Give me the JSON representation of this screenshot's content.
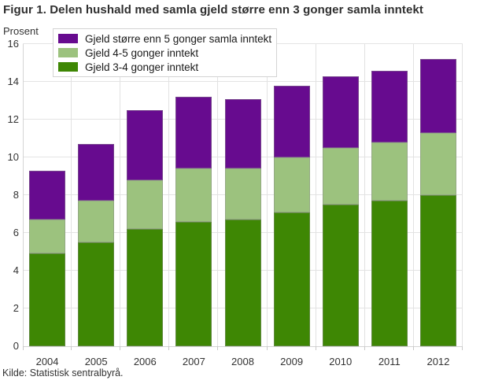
{
  "title": "Figur 1. Delen hushald med samla gjeld større enn 3 gonger samla inntekt",
  "source": "Kilde: Statistisk sentralbyrå.",
  "chart_data": {
    "type": "bar",
    "stacked": true,
    "title": "Figur 1. Delen hushald med samla gjeld større enn 3 gonger samla inntekt",
    "ylabel": "Prosent",
    "ylim": [
      0,
      16
    ],
    "yticks": [
      0,
      2,
      4,
      6,
      8,
      10,
      12,
      14,
      16
    ],
    "grid": true,
    "legend_position": "top-left-inside",
    "categories": [
      "2004",
      "2005",
      "2006",
      "2007",
      "2008",
      "2009",
      "2010",
      "2011",
      "2012"
    ],
    "series": [
      {
        "name": "Gjeld 3-4 gonger inntekt",
        "color": "#3e8704",
        "values": [
          4.9,
          5.5,
          6.2,
          6.6,
          6.7,
          7.1,
          7.5,
          7.7,
          8.0
        ]
      },
      {
        "name": "Gjeld 4-5 gonger inntekt",
        "color": "#9cc27e",
        "values": [
          1.8,
          2.2,
          2.6,
          2.8,
          2.7,
          2.9,
          3.0,
          3.1,
          3.3
        ]
      },
      {
        "name": "Gjeld større enn 5 gonger samla inntekt",
        "color": "#670b8f",
        "values": [
          2.6,
          3.0,
          3.7,
          3.8,
          3.7,
          3.8,
          3.8,
          3.8,
          3.9
        ]
      }
    ],
    "totals": [
      9.3,
      10.7,
      12.5,
      13.2,
      13.1,
      13.8,
      14.3,
      14.6,
      15.2
    ],
    "legend_order_note": "legend lists series top segment first"
  }
}
